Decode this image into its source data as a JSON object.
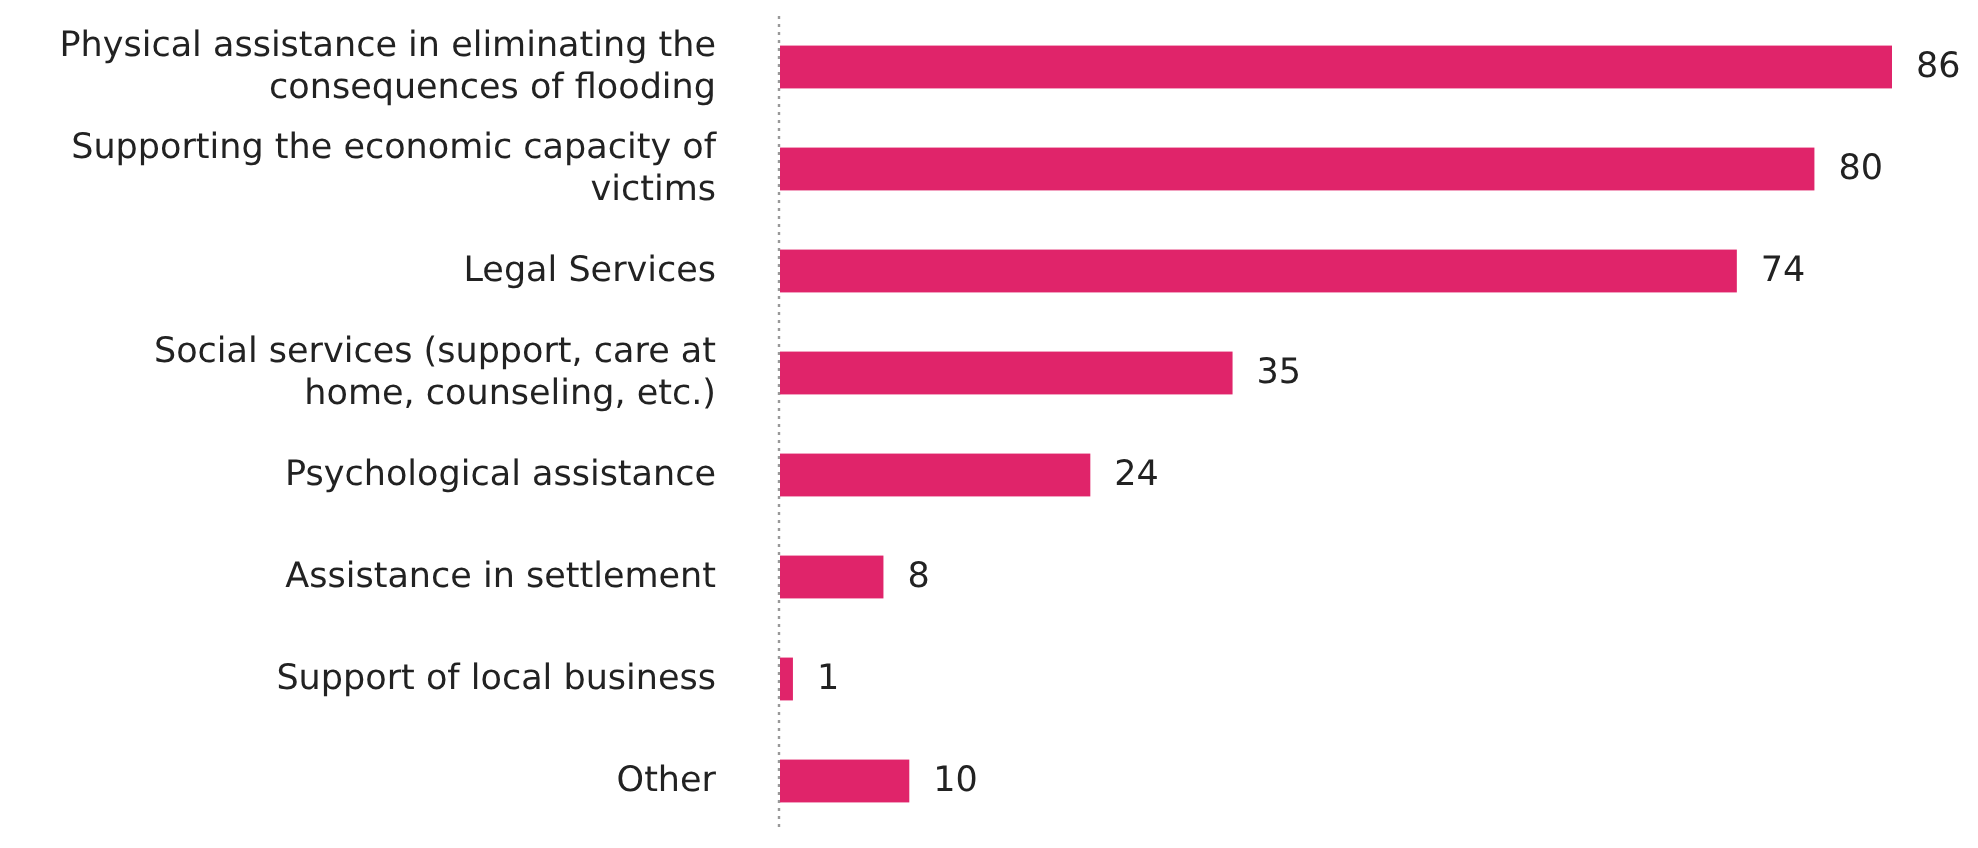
{
  "chart_data": {
    "type": "bar",
    "orientation": "horizontal",
    "categories": [
      "Physical assistance in eliminating the consequences of flooding",
      "Supporting the economic capacity of victims",
      "Legal Services",
      "Social services (support, care at home, counseling, etc.)",
      "Psychological assistance",
      "Assistance in settlement",
      "Support of local business",
      "Other"
    ],
    "values": [
      86,
      80,
      74,
      35,
      24,
      8,
      1,
      10
    ],
    "color": "#e0246a",
    "data_labels": true
  }
}
